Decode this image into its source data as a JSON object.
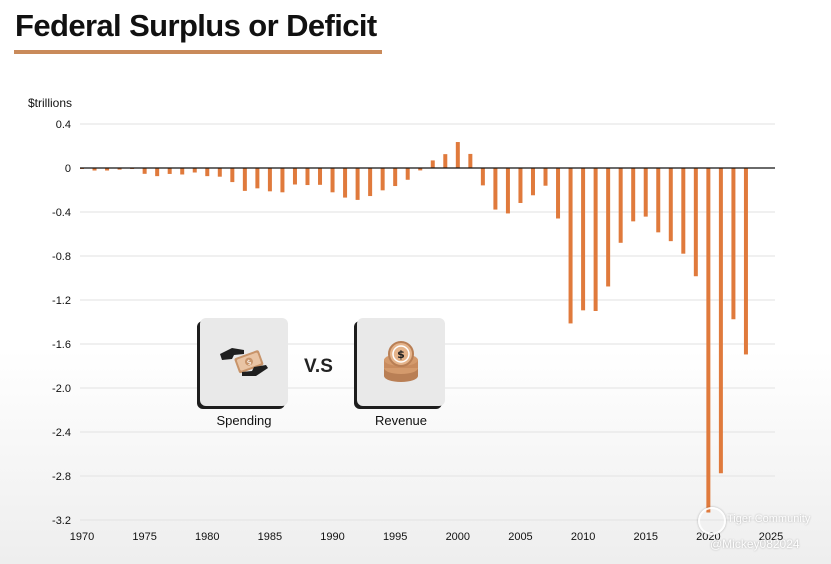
{
  "title": "Federal Surplus or Deficit",
  "colors": {
    "bar": "#e07a3c",
    "zero_line": "#111111",
    "grid": "#e2e2e2",
    "title_rule": "#c98a5a"
  },
  "chart_data": {
    "type": "bar",
    "title": "Federal Surplus or Deficit",
    "ylabel": "$trillions",
    "xlabel": "",
    "ylim": [
      -3.2,
      0.4
    ],
    "yticks": [
      0.4,
      0,
      -0.4,
      -0.8,
      -1.2,
      -1.6,
      -2.0,
      -2.4,
      -2.8,
      -3.2
    ],
    "ytick_labels": [
      "0.4",
      "0",
      "-0.4",
      "-0.8",
      "-1.2",
      "-1.6",
      "-2.0",
      "-2.4",
      "-2.8",
      "-3.2"
    ],
    "xlim": [
      1970,
      2025
    ],
    "xticks": [
      1970,
      1975,
      1980,
      1985,
      1990,
      1995,
      2000,
      2005,
      2010,
      2015,
      2020,
      2025
    ],
    "xtick_labels": [
      "1970",
      "1975",
      "1980",
      "1985",
      "1990",
      "1995",
      "2000",
      "2005",
      "2010",
      "2015",
      "2020",
      "2025"
    ],
    "grid": true,
    "series": [
      {
        "name": "Surplus or Deficit",
        "years": [
          1970,
          1971,
          1972,
          1973,
          1974,
          1975,
          1976,
          1977,
          1978,
          1979,
          1980,
          1981,
          1982,
          1983,
          1984,
          1985,
          1986,
          1987,
          1988,
          1989,
          1990,
          1991,
          1992,
          1993,
          1994,
          1995,
          1996,
          1997,
          1998,
          1999,
          2000,
          2001,
          2002,
          2003,
          2004,
          2005,
          2006,
          2007,
          2008,
          2009,
          2010,
          2011,
          2012,
          2013,
          2014,
          2015,
          2016,
          2017,
          2018,
          2019,
          2020,
          2021,
          2022,
          2023
        ],
        "values": [
          -0.003,
          -0.023,
          -0.023,
          -0.015,
          -0.006,
          -0.053,
          -0.074,
          -0.054,
          -0.059,
          -0.041,
          -0.074,
          -0.079,
          -0.128,
          -0.208,
          -0.185,
          -0.212,
          -0.221,
          -0.15,
          -0.155,
          -0.153,
          -0.221,
          -0.269,
          -0.29,
          -0.255,
          -0.203,
          -0.164,
          -0.107,
          -0.022,
          0.069,
          0.126,
          0.236,
          0.128,
          -0.158,
          -0.378,
          -0.413,
          -0.318,
          -0.248,
          -0.161,
          -0.459,
          -1.413,
          -1.294,
          -1.3,
          -1.077,
          -0.68,
          -0.485,
          -0.442,
          -0.585,
          -0.665,
          -0.779,
          -0.984,
          -3.132,
          -2.775,
          -1.375,
          -1.695
        ]
      }
    ]
  },
  "cards": {
    "spending": {
      "label": "Spending",
      "icon": "money-hands-icon"
    },
    "revenue": {
      "label": "Revenue",
      "icon": "coin-stack-icon"
    },
    "vs_label": "V.S"
  },
  "watermark": {
    "brand": "Tiger Community",
    "handle": "@Mickey082024"
  }
}
